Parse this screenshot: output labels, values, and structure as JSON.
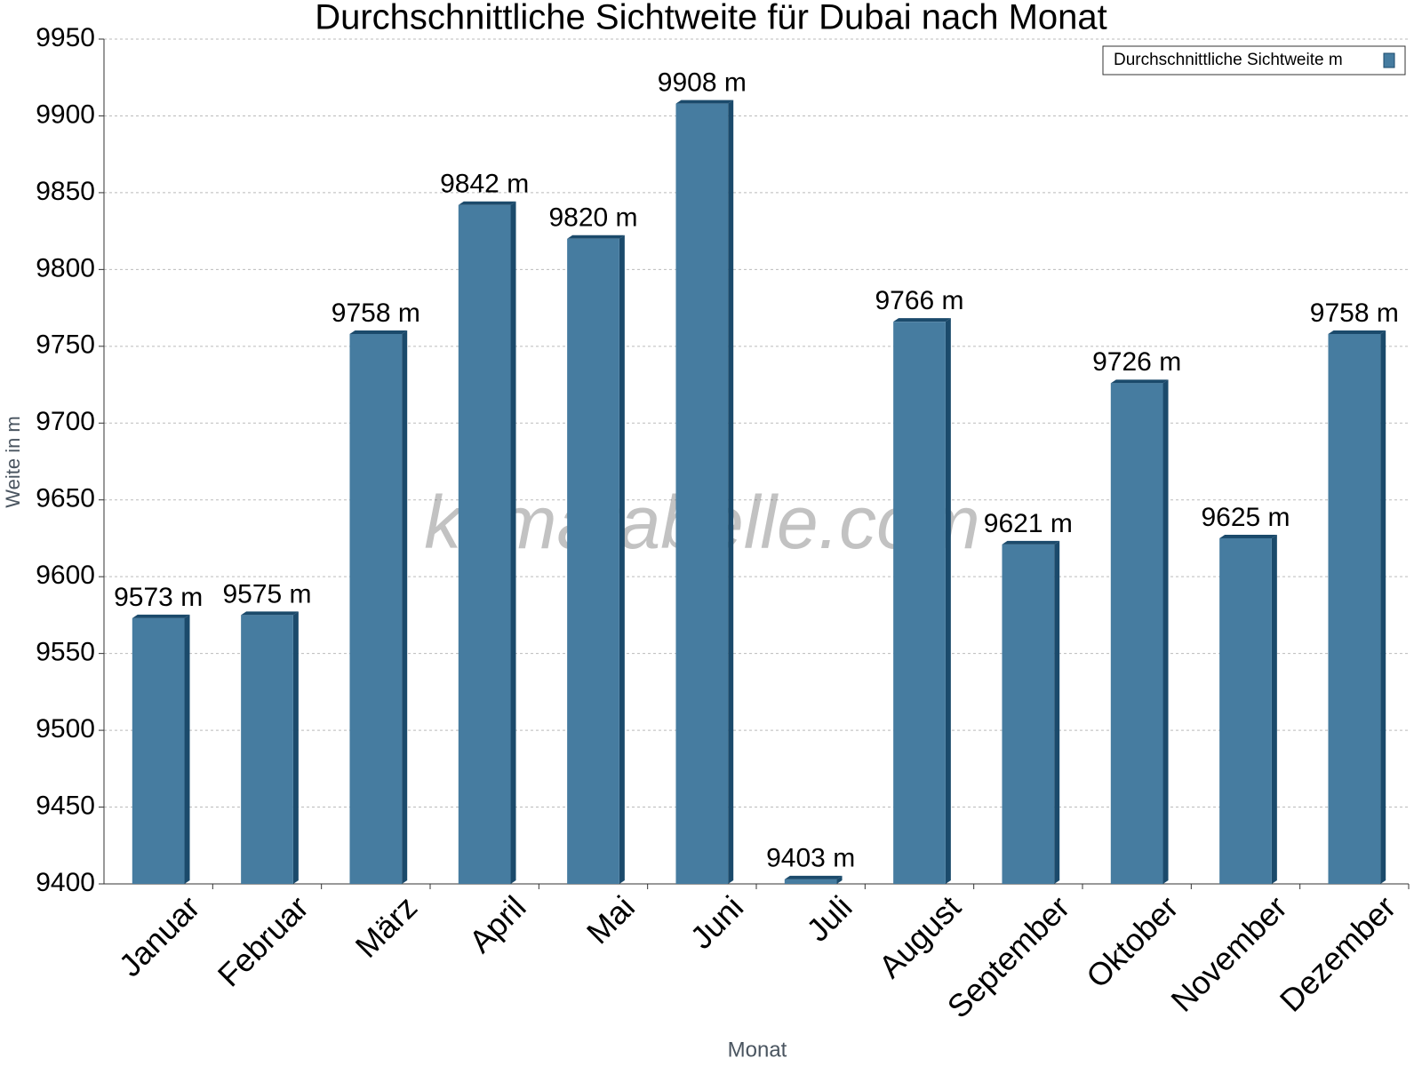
{
  "chart_data": {
    "type": "bar",
    "title": "Durchschnittliche Sichtweite für Dubai nach Monat",
    "x_label": "Monat",
    "y_label": "Weite in m",
    "watermark": "klimatabelle.com",
    "categories": [
      "Januar",
      "Februar",
      "März",
      "April",
      "Mai",
      "Juni",
      "Juli",
      "August",
      "September",
      "Oktober",
      "November",
      "Dezember"
    ],
    "series": [
      {
        "name": "Durchschnittliche Sichtweite m",
        "color": "#467ca0",
        "values": [
          9573,
          9575,
          9758,
          9842,
          9820,
          9908,
          9403,
          9766,
          9621,
          9726,
          9625,
          9758
        ],
        "value_labels": [
          "9573 m",
          "9575 m",
          "9758 m",
          "9842 m",
          "9820 m",
          "9908 m",
          "9403 m",
          "9766 m",
          "9621 m",
          "9726 m",
          "9625 m",
          "9758 m"
        ]
      }
    ],
    "ylim": [
      9400,
      9950
    ],
    "yticks": [
      9400,
      9450,
      9500,
      9550,
      9600,
      9650,
      9700,
      9750,
      9800,
      9850,
      9900,
      9950
    ],
    "grid": true,
    "legend": "top-right"
  }
}
